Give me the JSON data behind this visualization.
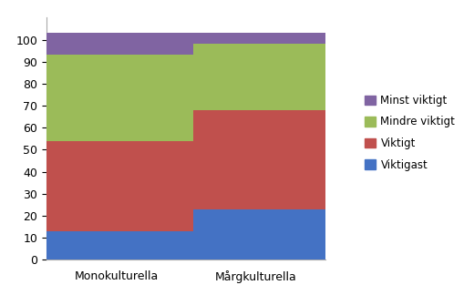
{
  "categories": [
    "Monokulturella",
    "Mårgkulturella"
  ],
  "series": [
    {
      "label": "Viktigast",
      "values": [
        13,
        23
      ],
      "color": "#4472C4"
    },
    {
      "label": "Viktigt",
      "values": [
        41,
        45
      ],
      "color": "#C0504D"
    },
    {
      "label": "Mindre viktigt",
      "values": [
        39,
        30
      ],
      "color": "#9BBB59"
    },
    {
      "label": "Minst viktigt",
      "values": [
        10,
        5
      ],
      "color": "#8064A2"
    }
  ],
  "ylim": [
    0,
    110
  ],
  "yticks": [
    0,
    10,
    20,
    30,
    40,
    50,
    60,
    70,
    80,
    90,
    100
  ],
  "bar_width": 0.55,
  "bar_positions": [
    0.25,
    0.75
  ],
  "xlim": [
    0.0,
    1.0
  ],
  "background_color": "#FFFFFF",
  "plot_bg_color": "#FFFFFF",
  "grid_color": "#C0C0C0",
  "legend_order": [
    3,
    2,
    1,
    0
  ],
  "legend_colors": [
    "#8064A2",
    "#9BBB59",
    "#C0504D",
    "#4472C4"
  ],
  "legend_labels": [
    "Minst viktigt",
    "Mindre viktigt",
    "Viktigt",
    "Viktigast"
  ]
}
